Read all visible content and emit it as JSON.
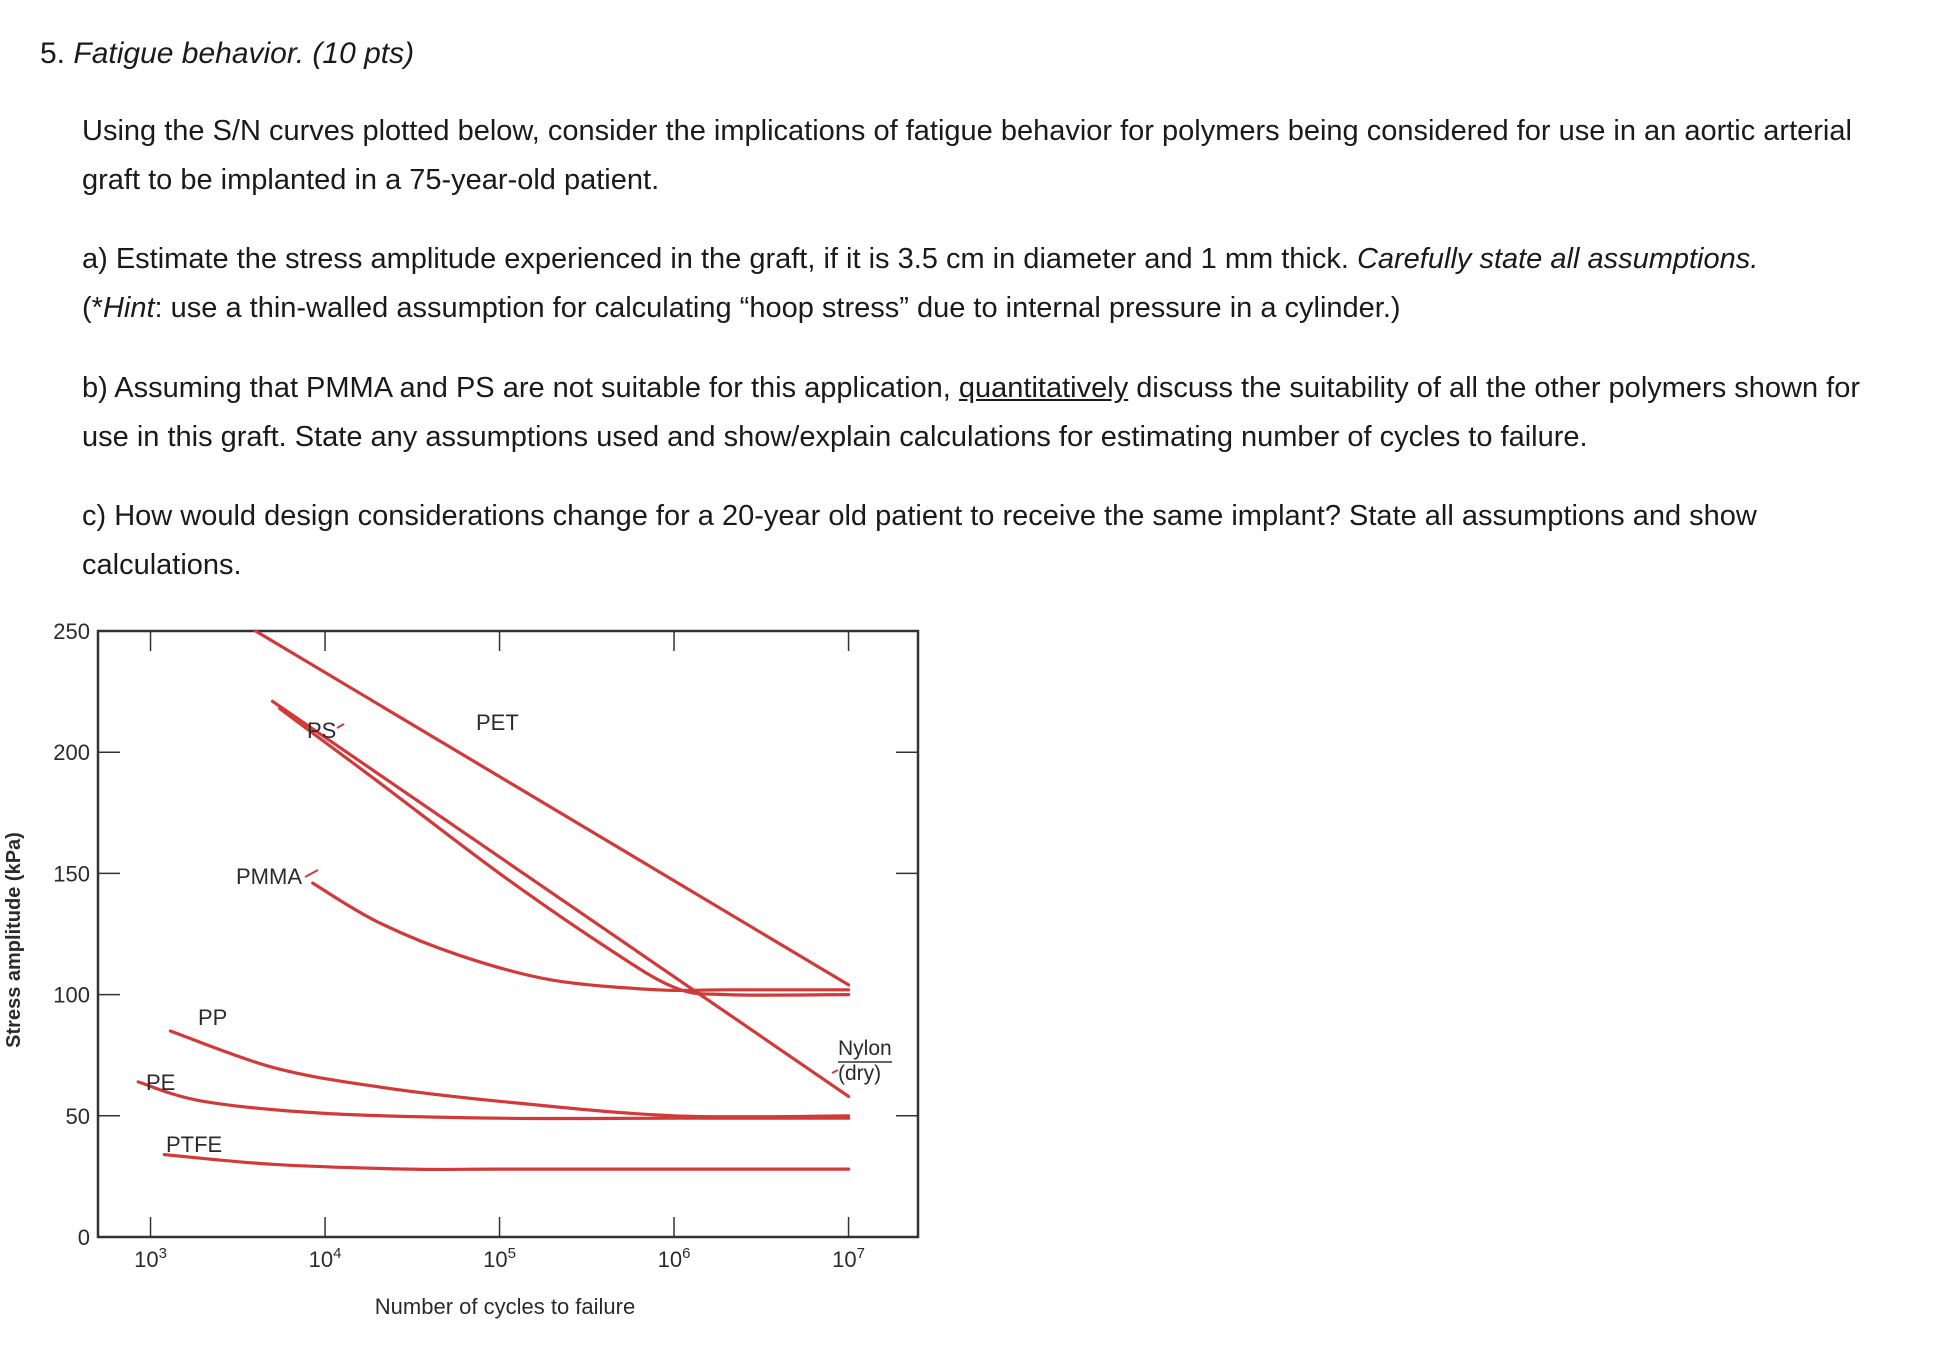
{
  "question": {
    "number": "5.",
    "title": "Fatigue behavior. (10 pts)",
    "intro": "Using the S/N curves plotted below, consider the implications of fatigue behavior for polymers being considered for use in an aortic arterial graft to be implanted in a 75-year-old patient.",
    "part_a": {
      "text1": "a) Estimate the stress amplitude experienced in the graft, if it is 3.5 cm in diameter and 1 mm thick. ",
      "emph": "Carefully state all assumptions.",
      "hint_open": "(*",
      "hint_label": "Hint",
      "hint_text": ": use a thin-walled assumption for calculating “hoop stress” due to internal pressure in a cylinder.)"
    },
    "part_b": {
      "text1": "b) Assuming that PMMA and PS are not suitable for this application, ",
      "underlined": "quantitatively",
      "text2": " discuss the suitability of all the other polymers shown for use in this graft. State any assumptions used and show/explain calculations for estimating number of cycles to failure."
    },
    "part_c": {
      "text": "c) How would design considerations change for a 20-year old patient to receive the same implant? State all assumptions and show calculations."
    }
  },
  "chart_data": {
    "type": "line",
    "xlabel": "Number of cycles to failure",
    "ylabel": "Stress amplitude (kPa)",
    "xscale": "log",
    "xlim": [
      500,
      25000000
    ],
    "ylim": [
      0,
      250
    ],
    "xticks": [
      {
        "value": 1000,
        "base": "10",
        "exp": "3"
      },
      {
        "value": 10000,
        "base": "10",
        "exp": "4"
      },
      {
        "value": 100000,
        "base": "10",
        "exp": "5"
      },
      {
        "value": 1000000,
        "base": "10",
        "exp": "6"
      },
      {
        "value": 10000000,
        "base": "10",
        "exp": "7"
      }
    ],
    "yticks": [
      "0",
      "50",
      "100",
      "150",
      "200",
      "250"
    ],
    "grid": false,
    "line_color": "#d23a3a",
    "series": [
      {
        "name": "PET",
        "points": [
          [
            4000,
            250
          ],
          [
            10000000,
            104
          ]
        ]
      },
      {
        "name": "PS",
        "points": [
          [
            5500,
            218
          ],
          [
            20000,
            188
          ],
          [
            100000,
            150
          ],
          [
            400000,
            120
          ],
          [
            1000000,
            103
          ],
          [
            2000000,
            100
          ],
          [
            10000000,
            100
          ]
        ]
      },
      {
        "name": "Nylon (dry)",
        "points": [
          [
            5000,
            221
          ],
          [
            10000000,
            58
          ]
        ]
      },
      {
        "name": "PMMA",
        "points": [
          [
            8500,
            146
          ],
          [
            20000,
            130
          ],
          [
            60000,
            116
          ],
          [
            200000,
            106
          ],
          [
            800000,
            102
          ],
          [
            2000000,
            102
          ],
          [
            10000000,
            102
          ]
        ]
      },
      {
        "name": "PP",
        "points": [
          [
            1300,
            85
          ],
          [
            5000,
            70
          ],
          [
            20000,
            62
          ],
          [
            100000,
            56
          ],
          [
            1000000,
            50
          ],
          [
            10000000,
            50
          ]
        ]
      },
      {
        "name": "PE",
        "points": [
          [
            850,
            64
          ],
          [
            2000,
            56
          ],
          [
            10000,
            51
          ],
          [
            100000,
            49
          ],
          [
            1000000,
            49
          ],
          [
            10000000,
            49
          ]
        ]
      },
      {
        "name": "PTFE",
        "points": [
          [
            1200,
            34
          ],
          [
            5000,
            30
          ],
          [
            30000,
            28
          ],
          [
            100000,
            28
          ],
          [
            1000000,
            28
          ],
          [
            10000000,
            28
          ]
        ]
      }
    ],
    "annotations": [
      {
        "text": "PET"
      },
      {
        "text": "PS"
      },
      {
        "text": "PMMA"
      },
      {
        "text": "PP"
      },
      {
        "text": "PE"
      },
      {
        "text": "PTFE"
      },
      {
        "text": "Nylon"
      },
      {
        "text": "(dry)"
      }
    ]
  }
}
